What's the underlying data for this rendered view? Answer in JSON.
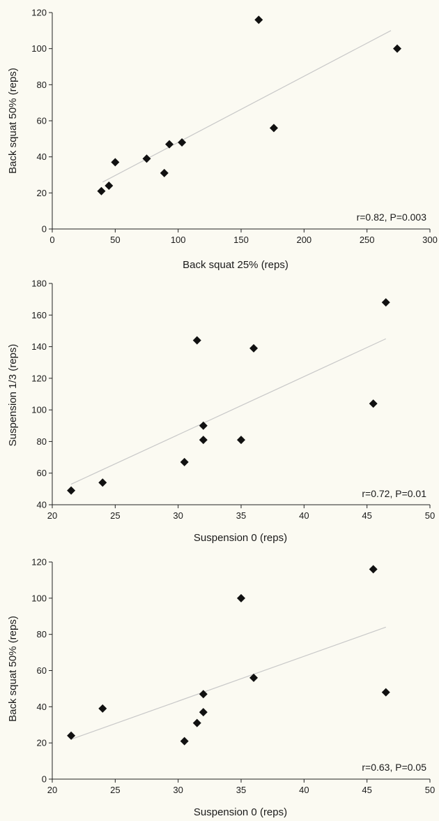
{
  "chart_data": [
    {
      "type": "scatter",
      "xlabel": "Back squat 25% (reps)",
      "ylabel": "Back squat 50% (reps)",
      "annotation": "r=0.82, P=0.003",
      "xlim": [
        0,
        300
      ],
      "ylim": [
        0,
        120
      ],
      "xticks": [
        "0",
        "50",
        "100",
        "150",
        "200",
        "250",
        "300"
      ],
      "yticks": [
        "0",
        "20",
        "40",
        "60",
        "80",
        "100",
        "120"
      ],
      "points": [
        {
          "x": 39,
          "y": 21
        },
        {
          "x": 45,
          "y": 24
        },
        {
          "x": 50,
          "y": 37
        },
        {
          "x": 75,
          "y": 39
        },
        {
          "x": 89,
          "y": 31
        },
        {
          "x": 93,
          "y": 47
        },
        {
          "x": 103,
          "y": 48
        },
        {
          "x": 164,
          "y": 116
        },
        {
          "x": 176,
          "y": 56
        },
        {
          "x": 274,
          "y": 100
        }
      ],
      "trendline": [
        [
          40,
          26
        ],
        [
          269,
          110
        ]
      ],
      "grid": false,
      "background": "#fbfaf2",
      "point_color": "#111111",
      "trend_color": "#c8c8c8"
    },
    {
      "type": "scatter",
      "xlabel": "Suspension 0 (reps)",
      "ylabel": "Suspension 1/3 (reps)",
      "annotation": "r=0.72, P=0.01",
      "xlim": [
        20,
        50
      ],
      "ylim": [
        40,
        180
      ],
      "xticks": [
        "20",
        "25",
        "30",
        "35",
        "40",
        "45",
        "50"
      ],
      "yticks": [
        "40",
        "60",
        "80",
        "100",
        "120",
        "140",
        "160",
        "180"
      ],
      "points": [
        {
          "x": 21.5,
          "y": 49
        },
        {
          "x": 24,
          "y": 54
        },
        {
          "x": 30.5,
          "y": 67
        },
        {
          "x": 31.5,
          "y": 144
        },
        {
          "x": 32,
          "y": 90
        },
        {
          "x": 32,
          "y": 81
        },
        {
          "x": 35,
          "y": 81
        },
        {
          "x": 36,
          "y": 139
        },
        {
          "x": 45.5,
          "y": 104
        },
        {
          "x": 46.5,
          "y": 168
        }
      ],
      "trendline": [
        [
          21.5,
          53
        ],
        [
          46.5,
          145
        ]
      ],
      "grid": false,
      "background": "#fbfaf2",
      "point_color": "#111111",
      "trend_color": "#c8c8c8"
    },
    {
      "type": "scatter",
      "xlabel": "Suspension 0 (reps)",
      "ylabel": "Back squat 50% (reps)",
      "annotation": "r=0.63, P=0.05",
      "xlim": [
        20,
        50
      ],
      "ylim": [
        0,
        120
      ],
      "xticks": [
        "20",
        "25",
        "30",
        "35",
        "40",
        "45",
        "50"
      ],
      "yticks": [
        "0",
        "20",
        "40",
        "60",
        "80",
        "100",
        "120"
      ],
      "points": [
        {
          "x": 21.5,
          "y": 24
        },
        {
          "x": 24,
          "y": 39
        },
        {
          "x": 30.5,
          "y": 21
        },
        {
          "x": 31.5,
          "y": 31
        },
        {
          "x": 32,
          "y": 37
        },
        {
          "x": 32,
          "y": 47
        },
        {
          "x": 35,
          "y": 100
        },
        {
          "x": 36,
          "y": 56
        },
        {
          "x": 45.5,
          "y": 116
        },
        {
          "x": 46.5,
          "y": 48
        }
      ],
      "trendline": [
        [
          21.5,
          22
        ],
        [
          46.5,
          84
        ]
      ],
      "grid": false,
      "background": "#fbfaf2",
      "point_color": "#111111",
      "trend_color": "#c8c8c8"
    }
  ]
}
